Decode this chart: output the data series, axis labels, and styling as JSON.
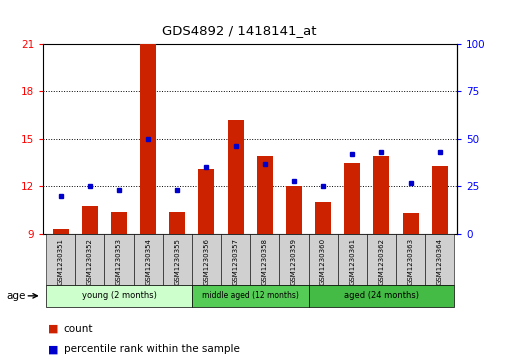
{
  "title": "GDS4892 / 1418141_at",
  "samples": [
    "GSM1230351",
    "GSM1230352",
    "GSM1230353",
    "GSM1230354",
    "GSM1230355",
    "GSM1230356",
    "GSM1230357",
    "GSM1230358",
    "GSM1230359",
    "GSM1230360",
    "GSM1230361",
    "GSM1230362",
    "GSM1230363",
    "GSM1230364"
  ],
  "count_values": [
    9.3,
    10.8,
    10.4,
    21.0,
    10.4,
    13.1,
    16.2,
    13.9,
    12.0,
    11.0,
    13.5,
    13.9,
    10.3,
    13.3
  ],
  "percentile_values": [
    20,
    25,
    23,
    50,
    23,
    35,
    46,
    37,
    28,
    25,
    42,
    43,
    27,
    43
  ],
  "y_min": 9,
  "y_max": 21,
  "y_ticks_left": [
    9,
    12,
    15,
    18,
    21
  ],
  "y_ticks_right": [
    0,
    25,
    50,
    75,
    100
  ],
  "bar_color": "#cc2200",
  "dot_color": "#0000cc",
  "bg_color": "#ffffff",
  "groups": [
    {
      "label": "young (2 months)",
      "start": 0,
      "end": 5,
      "color": "#ccffcc"
    },
    {
      "label": "middle aged (12 months)",
      "start": 5,
      "end": 9,
      "color": "#55cc55"
    },
    {
      "label": "aged (24 months)",
      "start": 9,
      "end": 14,
      "color": "#44bb44"
    }
  ],
  "legend_count_label": "count",
  "legend_pct_label": "percentile rank within the sample",
  "bar_bottom": 9,
  "grid_yticks": [
    12,
    15,
    18
  ]
}
